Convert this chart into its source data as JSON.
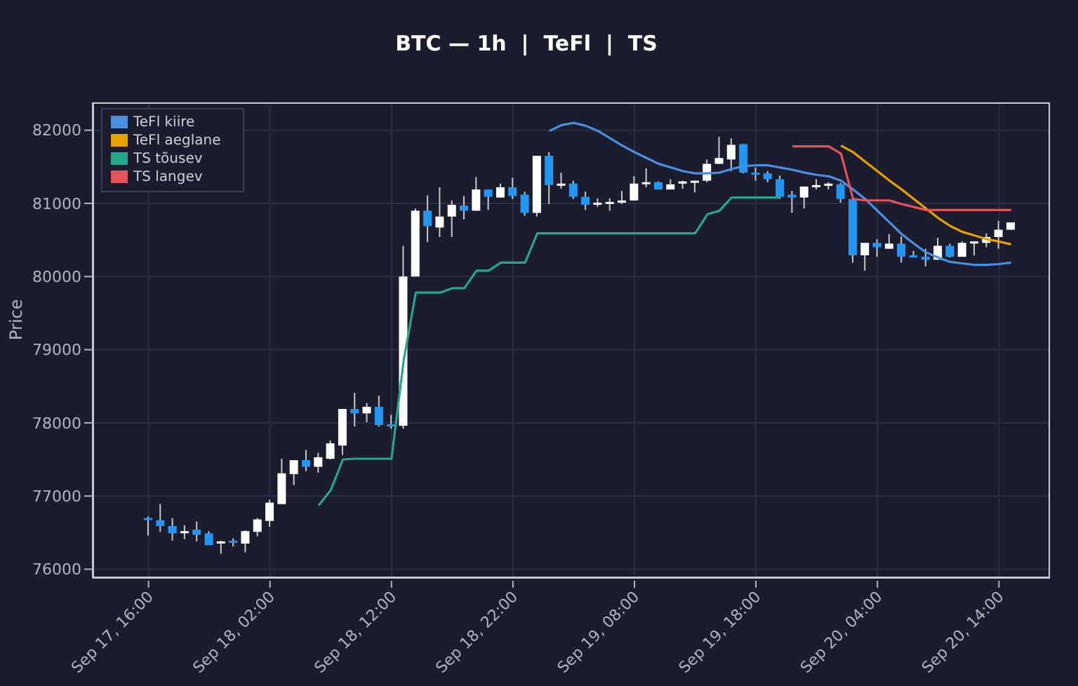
{
  "chart_data": {
    "type": "candlestick",
    "title": "BTC — 1h  |  TeFl  |  TS",
    "ylabel": "Price",
    "categories": [
      "Sep 17, 16:00",
      null,
      null,
      null,
      null,
      null,
      null,
      null,
      null,
      null,
      "Sep 18, 02:00",
      null,
      null,
      null,
      null,
      null,
      null,
      null,
      null,
      null,
      "Sep 18, 12:00",
      null,
      null,
      null,
      null,
      null,
      null,
      null,
      null,
      null,
      "Sep 18, 22:00",
      null,
      null,
      null,
      null,
      null,
      null,
      null,
      null,
      null,
      "Sep 19, 08:00",
      null,
      null,
      null,
      null,
      null,
      null,
      null,
      null,
      null,
      "Sep 19, 18:00",
      null,
      null,
      null,
      null,
      null,
      null,
      null,
      null,
      null,
      "Sep 20, 04:00",
      null,
      null,
      null,
      null,
      null,
      null,
      null,
      null,
      null,
      "Sep 20, 14:00",
      null
    ],
    "ylim": [
      75880,
      82380
    ],
    "yticks": [
      76000,
      77000,
      78000,
      79000,
      80000,
      81000,
      82000
    ],
    "grid": true,
    "legend": "top left",
    "series": [
      {
        "ohlc": [
          [
            76700,
            76720,
            76460,
            76690
          ],
          [
            76670,
            76890,
            76510,
            76590
          ],
          [
            76590,
            76700,
            76390,
            76490
          ],
          [
            76500,
            76600,
            76410,
            76520
          ],
          [
            76540,
            76650,
            76380,
            76470
          ],
          [
            76490,
            76520,
            76330,
            76330
          ],
          [
            76360,
            76390,
            76210,
            76380
          ],
          [
            76390,
            76420,
            76310,
            76370
          ],
          [
            76350,
            76530,
            76230,
            76520
          ],
          [
            76510,
            76700,
            76450,
            76680
          ],
          [
            76660,
            76950,
            76580,
            76910
          ],
          [
            76890,
            77510,
            76890,
            77310
          ],
          [
            77300,
            77490,
            77150,
            77490
          ],
          [
            77490,
            77630,
            77340,
            77400
          ],
          [
            77400,
            77590,
            77320,
            77530
          ],
          [
            77510,
            77760,
            77500,
            77720
          ],
          [
            77690,
            78190,
            77560,
            78190
          ],
          [
            78190,
            78410,
            77950,
            78130
          ],
          [
            78130,
            78270,
            78010,
            78220
          ],
          [
            78220,
            78370,
            77950,
            77970
          ],
          [
            77980,
            78110,
            77920,
            77950
          ],
          [
            77960,
            80420,
            77920,
            80000
          ],
          [
            80000,
            80930,
            80000,
            80900
          ],
          [
            80900,
            81110,
            80470,
            80690
          ],
          [
            80670,
            81220,
            80540,
            80820
          ],
          [
            80820,
            81040,
            80540,
            80980
          ],
          [
            80970,
            81100,
            80780,
            80900
          ],
          [
            80900,
            81360,
            80900,
            81190
          ],
          [
            81190,
            81190,
            80910,
            81090
          ],
          [
            81080,
            81270,
            81080,
            81220
          ],
          [
            81220,
            81350,
            81060,
            81100
          ],
          [
            81120,
            81160,
            80830,
            80870
          ],
          [
            80870,
            81650,
            80820,
            81650
          ],
          [
            81650,
            81700,
            80990,
            81250
          ],
          [
            81250,
            81420,
            81200,
            81270
          ],
          [
            81270,
            81310,
            81060,
            81090
          ],
          [
            81090,
            81160,
            80910,
            80980
          ],
          [
            80990,
            81070,
            80950,
            81010
          ],
          [
            81000,
            81070,
            80900,
            81020
          ],
          [
            81010,
            81170,
            80990,
            81040
          ],
          [
            81040,
            81370,
            81040,
            81270
          ],
          [
            81270,
            81480,
            81220,
            81290
          ],
          [
            81290,
            81300,
            81190,
            81190
          ],
          [
            81190,
            81330,
            81190,
            81260
          ],
          [
            81270,
            81310,
            81200,
            81300
          ],
          [
            81290,
            81310,
            81150,
            81310
          ],
          [
            81310,
            81600,
            81290,
            81540
          ],
          [
            81540,
            81910,
            81540,
            81620
          ],
          [
            81600,
            81890,
            81440,
            81800
          ],
          [
            81810,
            81810,
            81410,
            81420
          ],
          [
            81420,
            81490,
            81310,
            81410
          ],
          [
            81410,
            81440,
            81290,
            81330
          ],
          [
            81330,
            81380,
            81060,
            81090
          ],
          [
            81120,
            81170,
            80870,
            81080
          ],
          [
            81080,
            81230,
            80930,
            81230
          ],
          [
            81230,
            81330,
            81190,
            81250
          ],
          [
            81240,
            81290,
            81190,
            81270
          ],
          [
            81260,
            81280,
            81010,
            81060
          ],
          [
            81060,
            81060,
            80190,
            80290
          ],
          [
            80290,
            80460,
            80080,
            80460
          ],
          [
            80460,
            80510,
            80270,
            80400
          ],
          [
            80380,
            80580,
            80380,
            80450
          ],
          [
            80450,
            80550,
            80190,
            80270
          ],
          [
            80290,
            80350,
            80260,
            80270
          ],
          [
            80270,
            80380,
            80140,
            80230
          ],
          [
            80230,
            80530,
            80230,
            80420
          ],
          [
            80420,
            80450,
            80260,
            80270
          ],
          [
            80270,
            80480,
            80270,
            80460
          ],
          [
            80460,
            80480,
            80290,
            80480
          ],
          [
            80460,
            80590,
            80400,
            80540
          ],
          [
            80540,
            80760,
            80380,
            80640
          ],
          [
            80640,
            80740,
            80640,
            80740
          ]
        ],
        "colors": [
          "#2196f3",
          "#2196f3",
          "#2196f3",
          "#ffffff",
          "#2196f3",
          "#2196f3",
          "#ffffff",
          "#2196f3",
          "#ffffff",
          "#ffffff",
          "#ffffff",
          "#ffffff",
          "#ffffff",
          "#2196f3",
          "#ffffff",
          "#ffffff",
          "#ffffff",
          "#2196f3",
          "#ffffff",
          "#2196f3",
          "#2196f3",
          "#ffffff",
          "#ffffff",
          "#2196f3",
          "#ffffff",
          "#ffffff",
          "#2196f3",
          "#ffffff",
          "#2196f3",
          "#ffffff",
          "#2196f3",
          "#2196f3",
          "#ffffff",
          "#2196f3",
          "#ffffff",
          "#2196f3",
          "#2196f3",
          "#ffffff",
          "#ffffff",
          "#ffffff",
          "#ffffff",
          "#ffffff",
          "#2196f3",
          "#ffffff",
          "#ffffff",
          "#ffffff",
          "#ffffff",
          "#ffffff",
          "#ffffff",
          "#2196f3",
          "#2196f3",
          "#2196f3",
          "#2196f3",
          "#2196f3",
          "#ffffff",
          "#ffffff",
          "#ffffff",
          "#2196f3",
          "#2196f3",
          "#ffffff",
          "#2196f3",
          "#ffffff",
          "#2196f3",
          "#2196f3",
          "#2196f3",
          "#ffffff",
          "#2196f3",
          "#ffffff",
          "#ffffff",
          "#ffffff",
          "#ffffff",
          "#ffffff"
        ]
      },
      {
        "type": "line",
        "name": "TeFl kiire",
        "color": "#4a90e2",
        "values": [
          null,
          null,
          null,
          null,
          null,
          null,
          null,
          null,
          null,
          null,
          null,
          null,
          null,
          null,
          null,
          null,
          null,
          null,
          null,
          null,
          null,
          null,
          null,
          null,
          null,
          null,
          null,
          null,
          null,
          null,
          null,
          null,
          null,
          81990,
          82070,
          82100,
          82060,
          81990,
          81890,
          81790,
          81700,
          81620,
          81540,
          81490,
          81440,
          81410,
          81410,
          81420,
          81470,
          81510,
          81520,
          81520,
          81490,
          81460,
          81420,
          81390,
          81370,
          81310,
          81190,
          81060,
          80900,
          80740,
          80580,
          80450,
          80330,
          80260,
          80200,
          80180,
          80160,
          80160,
          80170,
          80190
        ]
      },
      {
        "type": "line",
        "name": "TeFl aeglane",
        "color": "#e6a100",
        "values": [
          null,
          null,
          null,
          null,
          null,
          null,
          null,
          null,
          null,
          null,
          null,
          null,
          null,
          null,
          null,
          null,
          null,
          null,
          null,
          null,
          null,
          null,
          null,
          null,
          null,
          null,
          null,
          null,
          null,
          null,
          null,
          null,
          null,
          null,
          null,
          null,
          null,
          null,
          null,
          null,
          null,
          null,
          null,
          null,
          null,
          null,
          null,
          null,
          null,
          null,
          null,
          null,
          null,
          null,
          null,
          null,
          null,
          81790,
          81700,
          81570,
          81440,
          81310,
          81190,
          81060,
          80930,
          80800,
          80690,
          80610,
          80560,
          80510,
          80480,
          80440
        ]
      },
      {
        "type": "line",
        "name": "TS tõusev",
        "color": "#26a68a",
        "values": [
          null,
          null,
          null,
          null,
          null,
          null,
          null,
          null,
          null,
          null,
          null,
          null,
          null,
          null,
          76870,
          77080,
          77500,
          77510,
          77510,
          77510,
          77510,
          78850,
          79780,
          79780,
          79780,
          79840,
          79840,
          80080,
          80080,
          80190,
          80190,
          80190,
          80590,
          80590,
          80590,
          80590,
          80590,
          80590,
          80590,
          80590,
          80590,
          80590,
          80590,
          80590,
          80590,
          80590,
          80850,
          80900,
          81080,
          81080,
          81080,
          81080,
          81080,
          null,
          null,
          null,
          null,
          null,
          null,
          null,
          null,
          null,
          null,
          null,
          null,
          null,
          null,
          null,
          null,
          null,
          null,
          null
        ]
      },
      {
        "type": "line",
        "name": "TS langev",
        "color": "#e5525a",
        "values": [
          null,
          null,
          null,
          null,
          null,
          null,
          null,
          null,
          null,
          null,
          null,
          null,
          null,
          null,
          null,
          null,
          null,
          null,
          null,
          null,
          null,
          null,
          null,
          null,
          null,
          null,
          null,
          null,
          null,
          null,
          null,
          null,
          null,
          null,
          null,
          null,
          null,
          null,
          null,
          null,
          null,
          null,
          null,
          null,
          null,
          null,
          null,
          null,
          null,
          null,
          null,
          null,
          null,
          81780,
          81780,
          81780,
          81780,
          81680,
          81060,
          81040,
          81040,
          81040,
          80990,
          80950,
          80910,
          80910,
          80910,
          80910,
          80910,
          80910,
          80910,
          80910
        ]
      }
    ]
  }
}
